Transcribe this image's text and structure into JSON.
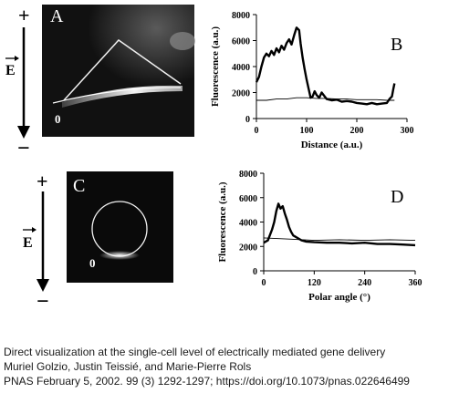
{
  "panels": {
    "A": {
      "letter": "A",
      "plus_sign": "+",
      "minus_sign": "−",
      "field_label": "E",
      "zero_label": "0"
    },
    "B": {
      "letter": "B"
    },
    "C": {
      "letter": "C",
      "plus_sign": "+",
      "minus_sign": "−",
      "field_label": "E",
      "zero_label": "0"
    },
    "D": {
      "letter": "D"
    }
  },
  "caption": {
    "line1": "Direct visualization at the single-cell level of electrically mediated gene delivery",
    "line2": "Muriel Golzio, Justin Teissié, and Marie-Pierre Rols",
    "line3": "PNAS February 5, 2002. 99 (3) 1292-1297; https://doi.org/10.1073/pnas.022646499"
  },
  "chart_data": [
    {
      "panel": "B",
      "type": "line",
      "xlabel": "Distance (a.u.)",
      "ylabel": "Fluorescence (a.u.)",
      "xlim": [
        0,
        300
      ],
      "ylim": [
        0,
        8000
      ],
      "xticks": [
        "0",
        "100",
        "200",
        "300"
      ],
      "yticks": [
        "0",
        "2000",
        "4000",
        "6000",
        "8000"
      ],
      "series": [
        {
          "style": "thick",
          "x": [
            0,
            5,
            10,
            15,
            20,
            25,
            30,
            35,
            40,
            45,
            50,
            55,
            60,
            65,
            70,
            75,
            80,
            85,
            88,
            92,
            96,
            100,
            104,
            108,
            112,
            116,
            120,
            125,
            130,
            140,
            150,
            160,
            170,
            180,
            190,
            200,
            210,
            220,
            230,
            240,
            250,
            260,
            265,
            270,
            273,
            275
          ],
          "y": [
            2800,
            3200,
            4000,
            4700,
            5000,
            4800,
            5200,
            4900,
            5400,
            5100,
            5600,
            5300,
            5800,
            6100,
            5700,
            6400,
            7000,
            6800,
            5800,
            4700,
            3800,
            3000,
            2300,
            1600,
            1700,
            2100,
            1800,
            1600,
            2000,
            1500,
            1400,
            1450,
            1300,
            1350,
            1300,
            1200,
            1150,
            1100,
            1200,
            1100,
            1150,
            1200,
            1500,
            1700,
            2300,
            2700
          ]
        },
        {
          "style": "thin",
          "x": [
            0,
            20,
            40,
            60,
            80,
            100,
            120,
            140,
            160,
            180,
            200,
            220,
            240,
            260,
            275
          ],
          "y": [
            1400,
            1400,
            1500,
            1500,
            1600,
            1600,
            1550,
            1550,
            1500,
            1500,
            1450,
            1450,
            1450,
            1400,
            1400
          ]
        }
      ]
    },
    {
      "panel": "D",
      "type": "line",
      "xlabel": "Polar angle (°)",
      "ylabel": "Fluorescence (a.u.)",
      "xlim": [
        0,
        360
      ],
      "ylim": [
        0,
        8000
      ],
      "xticks": [
        "0",
        "120",
        "240",
        "360"
      ],
      "yticks": [
        "0",
        "2000",
        "4000",
        "6000",
        "8000"
      ],
      "series": [
        {
          "style": "thick",
          "x": [
            0,
            10,
            20,
            25,
            30,
            35,
            40,
            45,
            50,
            55,
            60,
            65,
            70,
            80,
            90,
            100,
            120,
            150,
            180,
            210,
            240,
            270,
            300,
            330,
            360
          ],
          "y": [
            2300,
            2500,
            3400,
            4000,
            4900,
            5500,
            5100,
            5300,
            4700,
            4200,
            3600,
            3200,
            2900,
            2700,
            2500,
            2400,
            2350,
            2300,
            2300,
            2250,
            2300,
            2200,
            2200,
            2150,
            2100
          ]
        },
        {
          "style": "thin",
          "x": [
            0,
            60,
            120,
            180,
            240,
            300,
            360
          ],
          "y": [
            2700,
            2600,
            2500,
            2550,
            2500,
            2550,
            2500
          ]
        }
      ]
    }
  ]
}
